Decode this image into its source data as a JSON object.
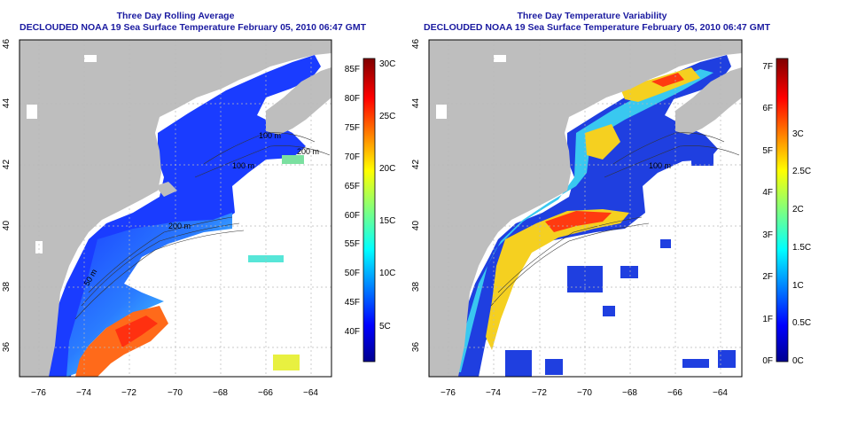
{
  "left_panel": {
    "title_line1": "Three Day Rolling Average",
    "title_line2": "DECLOUDED NOAA 19 Sea Surface Temperature February 05, 2010 06:47 GMT",
    "colorbar": {
      "min_f": 35,
      "max_f": 87,
      "f_labels": [
        "85F",
        "80F",
        "75F",
        "70F",
        "65F",
        "60F",
        "55F",
        "50F",
        "45F",
        "40F"
      ],
      "f_values": [
        85,
        80,
        75,
        70,
        65,
        60,
        55,
        50,
        45,
        40
      ],
      "c_labels": [
        "30C",
        "25C",
        "20C",
        "15C",
        "10C",
        "5C"
      ],
      "c_values": [
        30,
        25,
        20,
        15,
        10,
        5
      ]
    },
    "contour_labels": [
      "100 m",
      "200 m",
      "100 m",
      "200 m",
      "100 m",
      "200 m",
      "50 m"
    ]
  },
  "right_panel": {
    "title_line1": "Three Day Temperature Variability",
    "title_line2": "DECLOUDED NOAA 19 Sea Surface Temperature February 05, 2010 06:47 GMT",
    "colorbar": {
      "min_f": 0,
      "max_f": 7.2,
      "f_labels": [
        "7F",
        "6F",
        "5F",
        "4F",
        "3F",
        "2F",
        "1F",
        "0F"
      ],
      "f_values": [
        7,
        6,
        5,
        4,
        3,
        2,
        1,
        0
      ],
      "c_labels": [
        "3C",
        "2.5C",
        "2C",
        "1.5C",
        "1C",
        "0.5C",
        "0C"
      ],
      "c_values": [
        3,
        2.5,
        2,
        1.5,
        1,
        0.5,
        0
      ]
    },
    "contour_labels": [
      "100 m",
      "100 m",
      "200 m"
    ]
  },
  "axes": {
    "x_ticks": [
      "−76",
      "−74",
      "−72",
      "−70",
      "−68",
      "−66",
      "−64"
    ],
    "y_ticks": [
      "36",
      "38",
      "40",
      "42",
      "44",
      "46"
    ]
  },
  "colors": {
    "land": "#bebebe",
    "no_data": "#ffffff",
    "grid": "#b8b8b8",
    "title": "#1a1aa0"
  }
}
